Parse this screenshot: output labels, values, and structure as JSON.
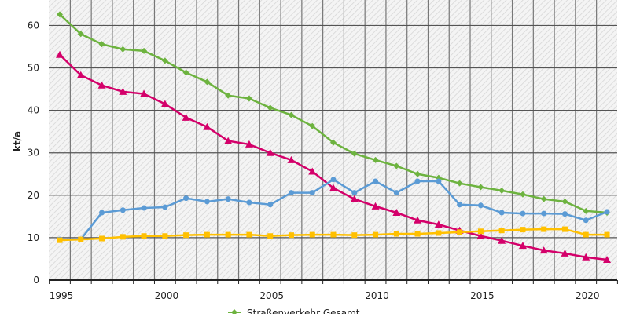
{
  "chart_data": {
    "type": "line",
    "title": "",
    "xlabel": "",
    "ylabel": "kt/a",
    "xlim": [
      1995,
      2021
    ],
    "ylim": [
      0,
      66
    ],
    "x_ticks": [
      1995,
      2000,
      2005,
      2010,
      2015,
      2020
    ],
    "y_ticks": [
      0,
      10,
      20,
      30,
      40,
      50,
      60
    ],
    "grid": true,
    "legend_position": "bottom",
    "x": [
      1995,
      1996,
      1997,
      1998,
      1999,
      2000,
      2001,
      2002,
      2003,
      2004,
      2005,
      2006,
      2007,
      2008,
      2009,
      2010,
      2011,
      2012,
      2013,
      2014,
      2015,
      2016,
      2017,
      2018,
      2019,
      2020,
      2021
    ],
    "series": [
      {
        "name": "Straßenverkehr Gesamt",
        "color": "#6db33f",
        "marker": "diamond",
        "values": [
          62.6,
          58.0,
          55.6,
          54.4,
          54.0,
          51.7,
          48.9,
          46.7,
          43.5,
          42.8,
          40.6,
          38.9,
          36.3,
          32.4,
          29.8,
          28.3,
          26.9,
          25.0,
          24.1,
          22.8,
          21.9,
          21.1,
          20.2,
          19.1,
          18.5,
          16.3,
          15.9
        ]
      },
      {
        "color": "#d4006a",
        "marker": "triangle",
        "values": [
          53.1,
          48.3,
          45.9,
          44.4,
          43.9,
          41.5,
          38.3,
          36.1,
          32.8,
          32.0,
          30.0,
          28.3,
          25.6,
          21.7,
          19.1,
          17.4,
          15.9,
          14.1,
          13.1,
          11.7,
          10.4,
          9.3,
          8.1,
          7.0,
          6.3,
          5.4,
          4.8
        ]
      },
      {
        "color": "#5b9bd5",
        "marker": "circle",
        "values": [
          9.6,
          9.6,
          15.9,
          16.5,
          17.0,
          17.2,
          19.3,
          18.5,
          19.1,
          18.3,
          17.8,
          20.6,
          20.6,
          23.7,
          20.6,
          23.3,
          20.6,
          23.3,
          23.3,
          17.8,
          17.6,
          15.9,
          15.7,
          15.7,
          15.6,
          14.1,
          16.1
        ]
      },
      {
        "color": "#ffc000",
        "marker": "square",
        "values": [
          9.4,
          9.6,
          9.8,
          10.2,
          10.4,
          10.4,
          10.6,
          10.7,
          10.7,
          10.7,
          10.4,
          10.6,
          10.7,
          10.7,
          10.6,
          10.7,
          10.9,
          10.9,
          11.1,
          11.3,
          11.5,
          11.7,
          11.9,
          12.0,
          12.0,
          10.7,
          10.7
        ]
      }
    ]
  }
}
